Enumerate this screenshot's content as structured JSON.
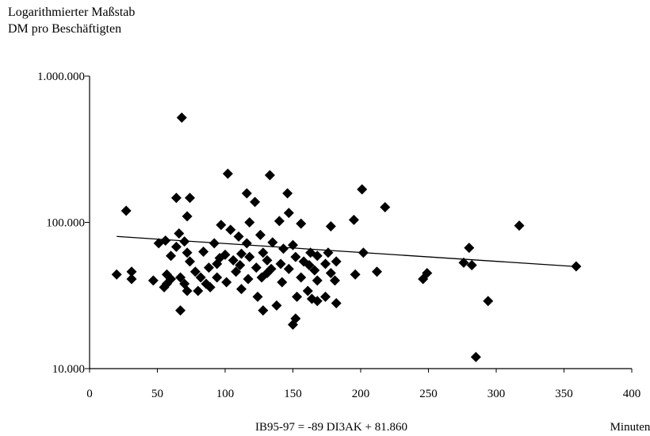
{
  "chart_data": {
    "type": "scatter",
    "title_lines": [
      "Logarithmierter Maßstab",
      "DM pro Beschäftigten"
    ],
    "xlabel": "Minuten",
    "ylabel": "",
    "equation": "IB95-97 = -89 DI3AK + 81.860",
    "xlim": [
      0,
      400
    ],
    "ylim": [
      10000,
      1000000
    ],
    "y_scale": "log",
    "x_ticks": [
      0,
      50,
      100,
      150,
      200,
      250,
      300,
      350,
      400
    ],
    "x_tick_labels": [
      "0",
      "50",
      "100",
      "150",
      "200",
      "250",
      "300",
      "350",
      "400"
    ],
    "y_ticks": [
      10000,
      100000,
      1000000
    ],
    "y_tick_labels": [
      "10.000",
      "100.000",
      "1.000.000"
    ],
    "grid": false,
    "legend": "none",
    "marker": "diamond",
    "marker_color": "#000000",
    "trendline": {
      "x": [
        20,
        360
      ],
      "y": [
        80100,
        49800
      ]
    },
    "points": [
      {
        "x": 68,
        "y": 520000
      },
      {
        "x": 102,
        "y": 215000
      },
      {
        "x": 133,
        "y": 210000
      },
      {
        "x": 201,
        "y": 168000
      },
      {
        "x": 116,
        "y": 158000
      },
      {
        "x": 146,
        "y": 158000
      },
      {
        "x": 64,
        "y": 147000
      },
      {
        "x": 74,
        "y": 147000
      },
      {
        "x": 122,
        "y": 138000
      },
      {
        "x": 218,
        "y": 127000
      },
      {
        "x": 27,
        "y": 120000
      },
      {
        "x": 147,
        "y": 116000
      },
      {
        "x": 72,
        "y": 110000
      },
      {
        "x": 140,
        "y": 102000
      },
      {
        "x": 118,
        "y": 100000
      },
      {
        "x": 195,
        "y": 104000
      },
      {
        "x": 156,
        "y": 98000
      },
      {
        "x": 317,
        "y": 95000
      },
      {
        "x": 97,
        "y": 96000
      },
      {
        "x": 178,
        "y": 94000
      },
      {
        "x": 104,
        "y": 89000
      },
      {
        "x": 66,
        "y": 84000
      },
      {
        "x": 126,
        "y": 82000
      },
      {
        "x": 110,
        "y": 80000
      },
      {
        "x": 56,
        "y": 75000
      },
      {
        "x": 70,
        "y": 74000
      },
      {
        "x": 51,
        "y": 72000
      },
      {
        "x": 92,
        "y": 72000
      },
      {
        "x": 116,
        "y": 72000
      },
      {
        "x": 135,
        "y": 73000
      },
      {
        "x": 150,
        "y": 70000
      },
      {
        "x": 64,
        "y": 68000
      },
      {
        "x": 143,
        "y": 66000
      },
      {
        "x": 280,
        "y": 67000
      },
      {
        "x": 84,
        "y": 63000
      },
      {
        "x": 72,
        "y": 62000
      },
      {
        "x": 100,
        "y": 60000
      },
      {
        "x": 112,
        "y": 61000
      },
      {
        "x": 128,
        "y": 62000
      },
      {
        "x": 163,
        "y": 62000
      },
      {
        "x": 176,
        "y": 62000
      },
      {
        "x": 202,
        "y": 62000
      },
      {
        "x": 60,
        "y": 59000
      },
      {
        "x": 96,
        "y": 57000
      },
      {
        "x": 118,
        "y": 58000
      },
      {
        "x": 152,
        "y": 58000
      },
      {
        "x": 168,
        "y": 59000
      },
      {
        "x": 74,
        "y": 54000
      },
      {
        "x": 106,
        "y": 55000
      },
      {
        "x": 131,
        "y": 55000
      },
      {
        "x": 158,
        "y": 54000
      },
      {
        "x": 182,
        "y": 54000
      },
      {
        "x": 276,
        "y": 53000
      },
      {
        "x": 94,
        "y": 52000
      },
      {
        "x": 111,
        "y": 51000
      },
      {
        "x": 141,
        "y": 52000
      },
      {
        "x": 162,
        "y": 51000
      },
      {
        "x": 174,
        "y": 52000
      },
      {
        "x": 282,
        "y": 51000
      },
      {
        "x": 359,
        "y": 50000
      },
      {
        "x": 88,
        "y": 49000
      },
      {
        "x": 123,
        "y": 49000
      },
      {
        "x": 134,
        "y": 48000
      },
      {
        "x": 147,
        "y": 48000
      },
      {
        "x": 166,
        "y": 47000
      },
      {
        "x": 212,
        "y": 46000
      },
      {
        "x": 78,
        "y": 46000
      },
      {
        "x": 108,
        "y": 46000
      },
      {
        "x": 249,
        "y": 45000
      },
      {
        "x": 20,
        "y": 44000
      },
      {
        "x": 31,
        "y": 46000
      },
      {
        "x": 57,
        "y": 44000
      },
      {
        "x": 131,
        "y": 45000
      },
      {
        "x": 196,
        "y": 44000
      },
      {
        "x": 178,
        "y": 45000
      },
      {
        "x": 31,
        "y": 41000
      },
      {
        "x": 47,
        "y": 40000
      },
      {
        "x": 60,
        "y": 41000
      },
      {
        "x": 67,
        "y": 42000
      },
      {
        "x": 82,
        "y": 42000
      },
      {
        "x": 94,
        "y": 42000
      },
      {
        "x": 117,
        "y": 41000
      },
      {
        "x": 127,
        "y": 42000
      },
      {
        "x": 156,
        "y": 42000
      },
      {
        "x": 246,
        "y": 41000
      },
      {
        "x": 168,
        "y": 40000
      },
      {
        "x": 181,
        "y": 40000
      },
      {
        "x": 57,
        "y": 38000
      },
      {
        "x": 70,
        "y": 38000
      },
      {
        "x": 86,
        "y": 38000
      },
      {
        "x": 101,
        "y": 39000
      },
      {
        "x": 142,
        "y": 39000
      },
      {
        "x": 55,
        "y": 36000
      },
      {
        "x": 89,
        "y": 36000
      },
      {
        "x": 112,
        "y": 35000
      },
      {
        "x": 72,
        "y": 34000
      },
      {
        "x": 80,
        "y": 34000
      },
      {
        "x": 161,
        "y": 34000
      },
      {
        "x": 124,
        "y": 31000
      },
      {
        "x": 153,
        "y": 31000
      },
      {
        "x": 164,
        "y": 30000
      },
      {
        "x": 174,
        "y": 31000
      },
      {
        "x": 168,
        "y": 29000
      },
      {
        "x": 182,
        "y": 28000
      },
      {
        "x": 294,
        "y": 29000
      },
      {
        "x": 138,
        "y": 27000
      },
      {
        "x": 67,
        "y": 25000
      },
      {
        "x": 128,
        "y": 25000
      },
      {
        "x": 152,
        "y": 22000
      },
      {
        "x": 150,
        "y": 20000
      },
      {
        "x": 285,
        "y": 12000
      }
    ]
  }
}
